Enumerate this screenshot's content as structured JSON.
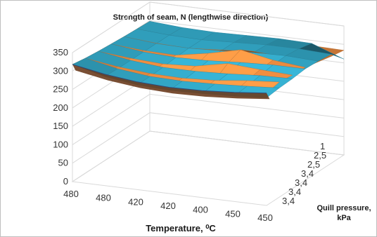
{
  "chart_data": {
    "type": "surface",
    "title": "Strength of seam, N (lengthwise direction)",
    "xlabel": "Temperature, ⁰C",
    "ylabel_line1": "Quill pressure,",
    "ylabel_line2": "kPa",
    "z_ticks": [
      "0",
      "50",
      "100",
      "150",
      "200",
      "250",
      "300",
      "350"
    ],
    "zlim": [
      0,
      350
    ],
    "x_categories": [
      "480",
      "480",
      "420",
      "420",
      "400",
      "450",
      "450"
    ],
    "y_categories": [
      "1",
      "2,5",
      "2,5",
      "3,4",
      "3,4",
      "3,4",
      "3,4"
    ],
    "series": [
      {
        "name": "",
        "color": "#e8893e",
        "values": [
          [
            318,
            302,
            292,
            288,
            290,
            296,
            305
          ],
          [
            312,
            300,
            292,
            290,
            295,
            305,
            312
          ],
          [
            308,
            300,
            295,
            300,
            318,
            312,
            308
          ],
          [
            305,
            298,
            296,
            312,
            332,
            315,
            306
          ],
          [
            302,
            295,
            292,
            298,
            305,
            300,
            298
          ],
          [
            300,
            292,
            288,
            290,
            294,
            292,
            290
          ],
          [
            298,
            290,
            285,
            286,
            288,
            286,
            284
          ]
        ]
      },
      {
        "name": "",
        "color": "#31a2c0",
        "values": [
          [
            318,
            296,
            284,
            280,
            282,
            286,
            292
          ],
          [
            312,
            294,
            284,
            282,
            285,
            290,
            296
          ],
          [
            308,
            294,
            286,
            286,
            290,
            296,
            298
          ],
          [
            305,
            294,
            290,
            292,
            298,
            302,
            302
          ],
          [
            302,
            294,
            292,
            296,
            302,
            304,
            300
          ],
          [
            300,
            294,
            292,
            296,
            300,
            300,
            296
          ],
          [
            298,
            292,
            290,
            292,
            294,
            292,
            260
          ]
        ]
      }
    ],
    "grid": true
  }
}
